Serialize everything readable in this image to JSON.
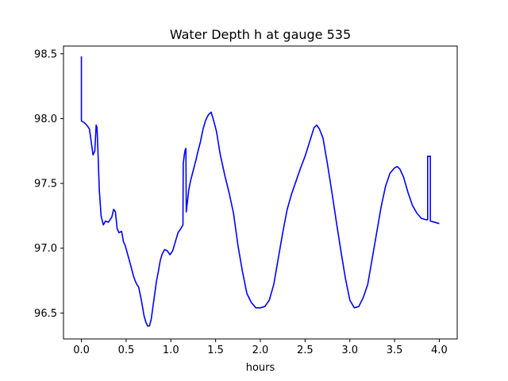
{
  "chart_data": {
    "type": "line",
    "title": "Water Depth h at gauge 535",
    "xlabel": "hours",
    "ylabel": "",
    "xlim": [
      -0.2,
      4.2
    ],
    "ylim": [
      96.3,
      98.56
    ],
    "xticks": [
      0.0,
      0.5,
      1.0,
      1.5,
      2.0,
      2.5,
      3.0,
      3.5,
      4.0
    ],
    "xtick_labels": [
      "0.0",
      "0.5",
      "1.0",
      "1.5",
      "2.0",
      "2.5",
      "3.0",
      "3.5",
      "4.0"
    ],
    "yticks": [
      96.5,
      97.0,
      97.5,
      98.0,
      98.5
    ],
    "ytick_labels": [
      "96.5",
      "97.0",
      "97.5",
      "98.0",
      "98.5"
    ],
    "grid": false,
    "series": [
      {
        "color": "#0000ff",
        "x": [
          0.0,
          0.0,
          0.002,
          0.03,
          0.06,
          0.09,
          0.11,
          0.13,
          0.15,
          0.165,
          0.175,
          0.185,
          0.2,
          0.22,
          0.245,
          0.27,
          0.3,
          0.32,
          0.34,
          0.36,
          0.38,
          0.4,
          0.42,
          0.45,
          0.47,
          0.49,
          0.51,
          0.53,
          0.55,
          0.58,
          0.6,
          0.62,
          0.64,
          0.67,
          0.7,
          0.72,
          0.74,
          0.76,
          0.78,
          0.8,
          0.82,
          0.84,
          0.86,
          0.88,
          0.9,
          0.93,
          0.96,
          0.99,
          1.02,
          1.05,
          1.08,
          1.11,
          1.135,
          1.138,
          1.15,
          1.16,
          1.168,
          1.172,
          1.2,
          1.22,
          1.25,
          1.28,
          1.3,
          1.33,
          1.36,
          1.39,
          1.42,
          1.45,
          1.48,
          1.51,
          1.55,
          1.6,
          1.65,
          1.7,
          1.75,
          1.8,
          1.85,
          1.9,
          1.95,
          2.0,
          2.05,
          2.1,
          2.15,
          2.2,
          2.25,
          2.3,
          2.35,
          2.4,
          2.45,
          2.5,
          2.55,
          2.6,
          2.63,
          2.66,
          2.7,
          2.75,
          2.8,
          2.85,
          2.9,
          2.95,
          3.0,
          3.05,
          3.1,
          3.15,
          3.2,
          3.25,
          3.3,
          3.35,
          3.4,
          3.45,
          3.5,
          3.53,
          3.56,
          3.6,
          3.65,
          3.7,
          3.75,
          3.8,
          3.85,
          3.87,
          3.87,
          3.9,
          3.9,
          3.95,
          4.0
        ],
        "y": [
          98.48,
          97.99,
          97.98,
          97.97,
          97.95,
          97.92,
          97.82,
          97.72,
          97.75,
          97.95,
          97.93,
          97.75,
          97.45,
          97.25,
          97.18,
          97.21,
          97.2,
          97.22,
          97.24,
          97.3,
          97.28,
          97.15,
          97.12,
          97.13,
          97.05,
          97.02,
          96.97,
          96.92,
          96.87,
          96.79,
          96.75,
          96.72,
          96.7,
          96.6,
          96.48,
          96.43,
          96.4,
          96.4,
          96.45,
          96.55,
          96.65,
          96.75,
          96.82,
          96.9,
          96.95,
          96.99,
          96.98,
          96.95,
          96.98,
          97.05,
          97.12,
          97.15,
          97.18,
          97.65,
          97.72,
          97.76,
          97.77,
          97.28,
          97.45,
          97.52,
          97.6,
          97.68,
          97.74,
          97.82,
          97.92,
          97.99,
          98.03,
          98.05,
          97.98,
          97.9,
          97.73,
          97.57,
          97.43,
          97.27,
          97.02,
          96.82,
          96.65,
          96.58,
          96.54,
          96.54,
          96.55,
          96.6,
          96.72,
          96.92,
          97.12,
          97.3,
          97.42,
          97.52,
          97.62,
          97.71,
          97.82,
          97.93,
          97.95,
          97.92,
          97.85,
          97.65,
          97.43,
          97.2,
          96.98,
          96.77,
          96.6,
          96.54,
          96.55,
          96.62,
          96.72,
          96.92,
          97.12,
          97.32,
          97.48,
          97.58,
          97.62,
          97.63,
          97.61,
          97.55,
          97.43,
          97.33,
          97.27,
          97.23,
          97.22,
          97.22,
          97.71,
          97.71,
          97.21,
          97.2,
          97.19
        ]
      }
    ]
  }
}
